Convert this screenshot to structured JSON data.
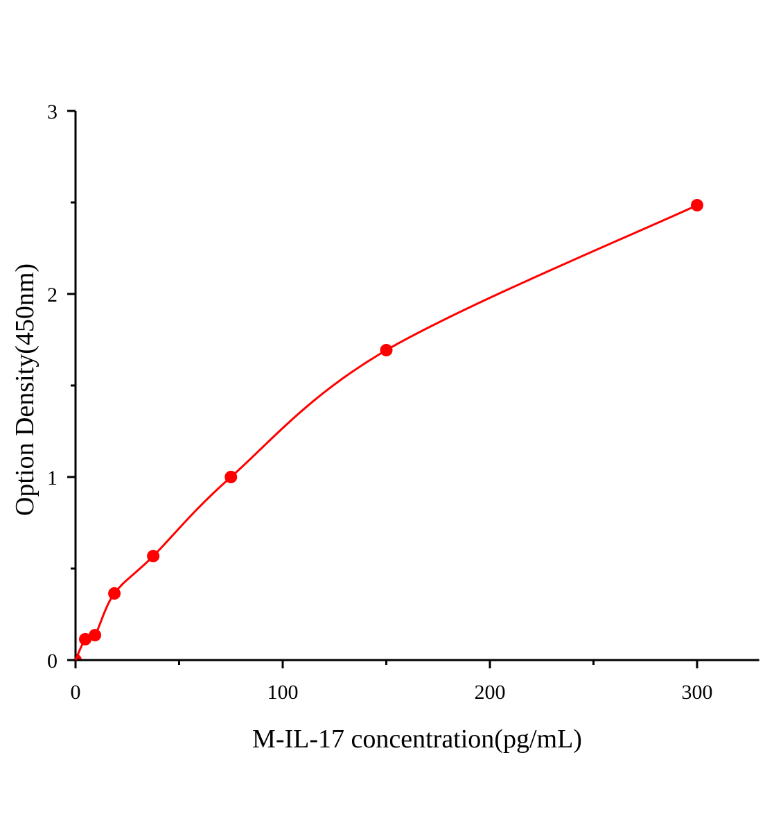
{
  "chart_data": {
    "type": "scatter",
    "title": "",
    "xlabel": "M-IL-17 concentration(pg/mL)",
    "ylabel": "Option Density(450nm)",
    "xlim": [
      0,
      330
    ],
    "ylim": [
      0,
      3
    ],
    "xticks": [
      0,
      100,
      200,
      300
    ],
    "yticks": [
      0,
      1,
      2,
      3
    ],
    "xtick_labels": [
      "0",
      "100",
      "200",
      "300"
    ],
    "ytick_labels": [
      "0",
      "1",
      "2",
      "3"
    ],
    "grid": false,
    "legend": "none",
    "series": [
      {
        "x": [
          0,
          4.69,
          9.38,
          18.75,
          37.5,
          75,
          150,
          300
        ],
        "y": [
          0,
          0.114,
          0.136,
          0.364,
          0.568,
          1.0,
          1.693,
          2.485
        ],
        "fit_curve": true
      }
    ],
    "colors": {
      "series": "#ff0000",
      "axis": "#000000"
    }
  }
}
